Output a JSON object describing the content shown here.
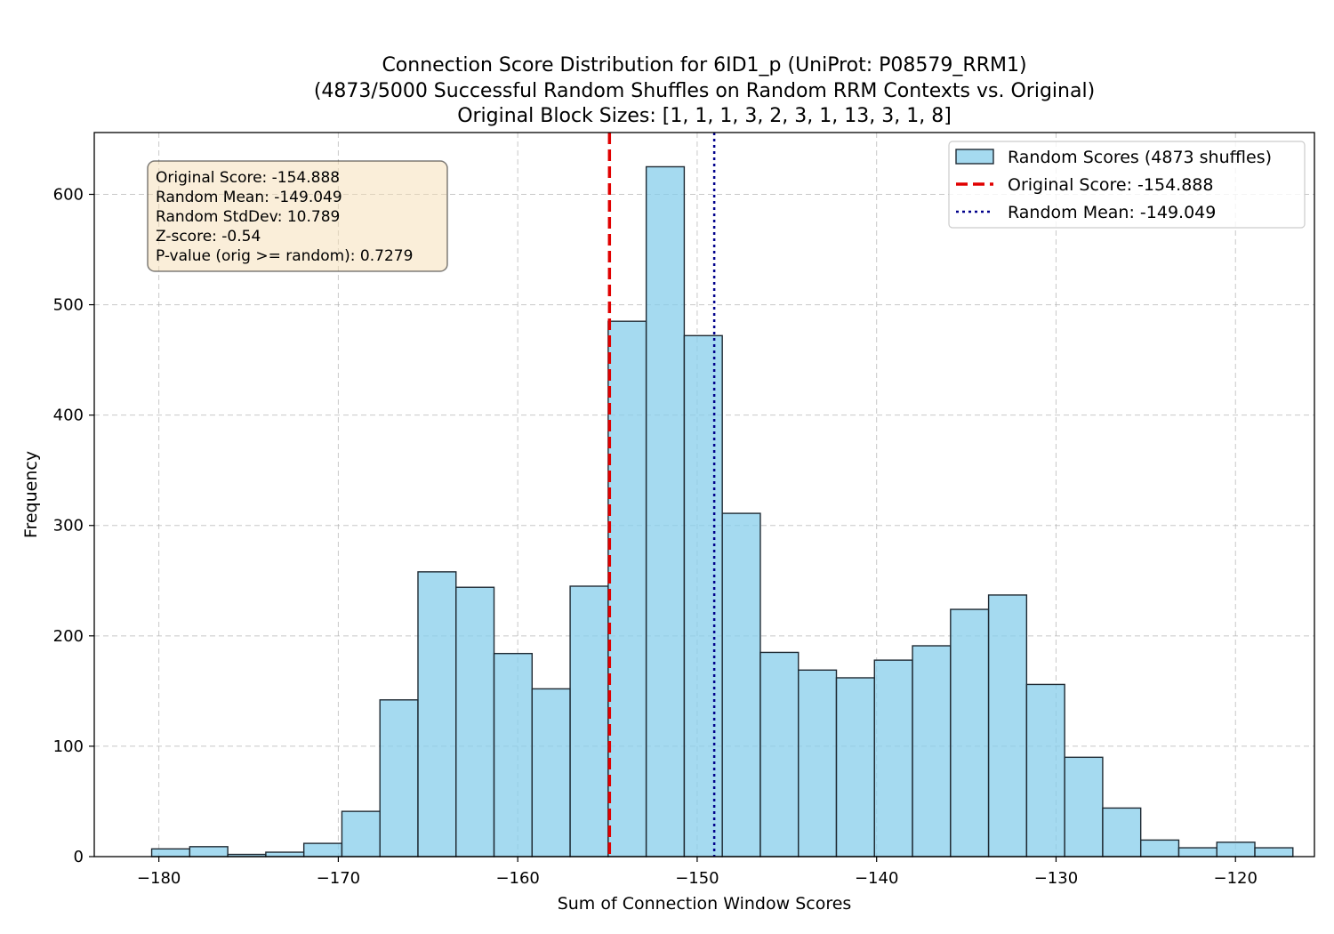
{
  "chart_data": {
    "type": "bar",
    "title_lines": [
      "Connection Score Distribution for 6ID1_p (UniProt: P08579_RRM1)",
      "(4873/5000 Successful Random Shuffles on Random RRM Contexts vs. Original)",
      "Original Block Sizes: [1, 1, 1, 3, 2, 3, 1, 13, 3, 1, 8]"
    ],
    "xlabel": "Sum of Connection Window Scores",
    "ylabel": "Frequency",
    "xlim": [
      -183.6,
      -115.6
    ],
    "ylim": [
      0,
      656
    ],
    "xticks": [
      -180,
      -170,
      -160,
      -150,
      -140,
      -130,
      -120
    ],
    "xtick_labels": [
      "−180",
      "−170",
      "−160",
      "−150",
      "−140",
      "−130",
      "−120"
    ],
    "yticks": [
      0,
      100,
      200,
      300,
      400,
      500,
      600
    ],
    "ytick_labels": [
      "0",
      "100",
      "200",
      "300",
      "400",
      "500",
      "600"
    ],
    "grid": true,
    "legend_position": "top-right",
    "bin_edges": [
      -180.4,
      -178.28,
      -176.16,
      -174.04,
      -171.92,
      -169.8,
      -167.68,
      -165.56,
      -163.44,
      -161.32,
      -159.2,
      -157.08,
      -154.96,
      -152.84,
      -150.72,
      -148.6,
      -146.48,
      -144.36,
      -142.24,
      -140.12,
      -138.0,
      -135.88,
      -133.76,
      -131.64,
      -129.52,
      -127.4,
      -125.28,
      -123.16,
      -121.04,
      -118.92,
      -116.8
    ],
    "counts": [
      7,
      9,
      2,
      4,
      12,
      41,
      142,
      258,
      244,
      184,
      152,
      245,
      485,
      625,
      472,
      311,
      185,
      169,
      162,
      178,
      191,
      224,
      237,
      156,
      90,
      44,
      15,
      8,
      13,
      8
    ],
    "series": [
      {
        "name": "Random Scores (4873 shuffles)",
        "kind": "histogram",
        "color": "#87CEEB"
      }
    ],
    "vlines": [
      {
        "name": "Original Score: -154.888",
        "x": -154.888,
        "color": "#e00000",
        "style": "dashed"
      },
      {
        "name": "Random Mean: -149.049",
        "x": -149.049,
        "color": "#00008b",
        "style": "dotted"
      }
    ],
    "stats_box": [
      "Original Score: -154.888",
      "Random Mean: -149.049",
      "Random StdDev: 10.789",
      "Z-score: -0.54",
      "P-value (orig >= random): 0.7279"
    ]
  }
}
